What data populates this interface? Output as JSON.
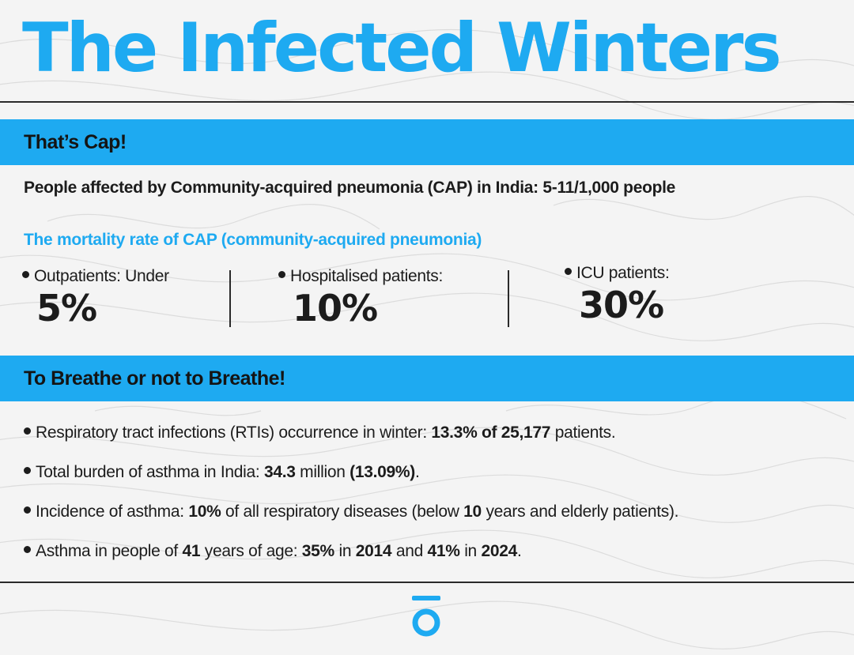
{
  "colors": {
    "accent": "#1eaaf1",
    "text": "#1c1c1c",
    "background": "#f4f4f4"
  },
  "title": "The Infected Winters",
  "section1": {
    "heading": "That’s Cap!",
    "affected_line": "People affected by Community-acquired pneumonia (CAP) in India: 5-11/1,000 people",
    "mortality_heading": "The mortality rate of CAP (community-acquired pneumonia)",
    "stats": [
      {
        "label": "Outpatients: Under",
        "value": "5%"
      },
      {
        "label": "Hospitalised patients:",
        "value": "10%"
      },
      {
        "label": "ICU patients:",
        "value": "30%"
      }
    ]
  },
  "section2": {
    "heading": "To Breathe or not to Breathe!",
    "bullets": [
      {
        "parts": [
          {
            "text": "Respiratory tract infections (RTIs) occurrence in winter: ",
            "bold": false
          },
          {
            "text": "13.3% of 25,177",
            "bold": true
          },
          {
            "text": " patients.",
            "bold": false
          }
        ]
      },
      {
        "parts": [
          {
            "text": "Total burden of asthma in India: ",
            "bold": false
          },
          {
            "text": "34.3",
            "bold": true
          },
          {
            "text": " million ",
            "bold": false
          },
          {
            "text": "(13.09%)",
            "bold": true
          },
          {
            "text": ".",
            "bold": false
          }
        ]
      },
      {
        "parts": [
          {
            "text": "Incidence of asthma: ",
            "bold": false
          },
          {
            "text": "10%",
            "bold": true
          },
          {
            "text": " of all respiratory diseases (below ",
            "bold": false
          },
          {
            "text": "10",
            "bold": true
          },
          {
            "text": " years and elderly patients).",
            "bold": false
          }
        ]
      },
      {
        "parts": [
          {
            "text": "Asthma in people of ",
            "bold": false
          },
          {
            "text": "41",
            "bold": true
          },
          {
            "text": " years of age: ",
            "bold": false
          },
          {
            "text": "35%",
            "bold": true
          },
          {
            "text": " in ",
            "bold": false
          },
          {
            "text": "2014",
            "bold": true
          },
          {
            "text": " and ",
            "bold": false
          },
          {
            "text": "41%",
            "bold": true
          },
          {
            "text": " in ",
            "bold": false
          },
          {
            "text": "2024",
            "bold": true
          },
          {
            "text": ".",
            "bold": false
          }
        ]
      }
    ]
  },
  "footer": {
    "logo_icon": "brand-logo-icon"
  }
}
